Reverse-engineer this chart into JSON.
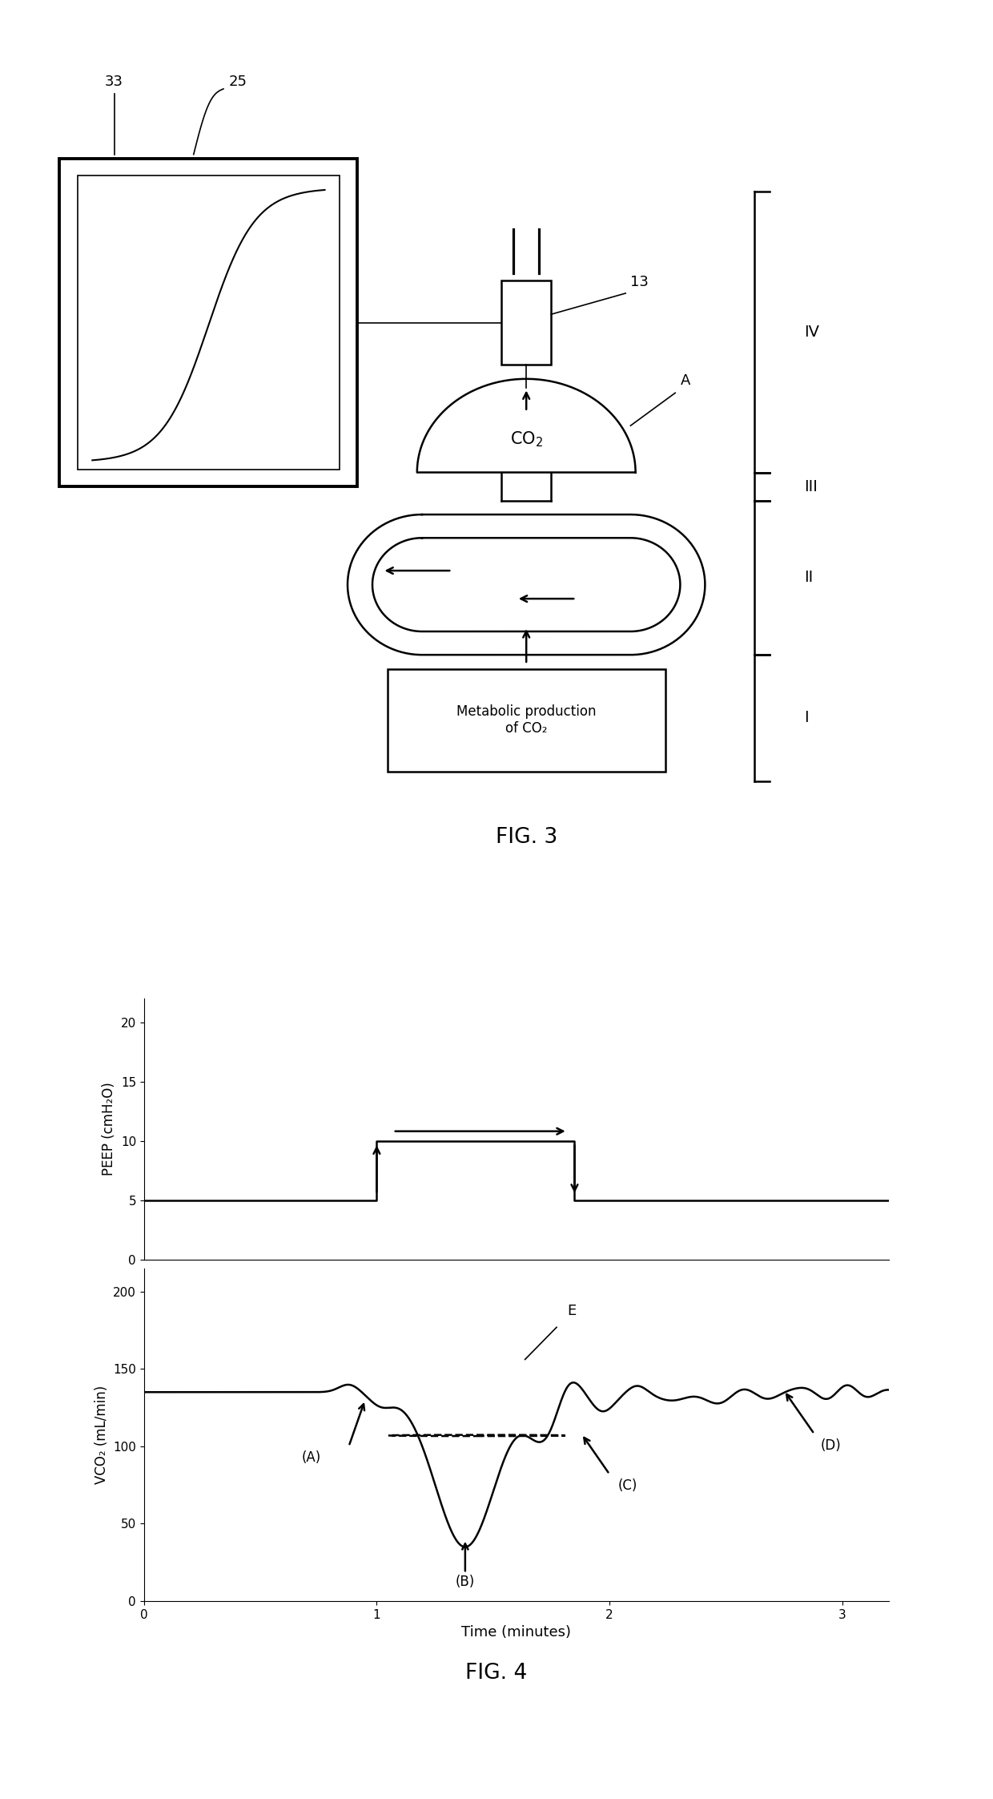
{
  "bg_color": "#ffffff",
  "fig3_title": "FIG. 3",
  "fig4_title": "FIG. 4",
  "label_33": "33",
  "label_25": "25",
  "label_13": "13",
  "label_A": "A",
  "label_IV": "IV",
  "label_III": "III",
  "label_II": "II",
  "label_I": "I",
  "label_metabolic": "Metabolic production\nof CO₂",
  "label_CO2": "CO₂",
  "peep_ylabel": "PEEP (cmH₂O)",
  "peep_yticks": [
    0,
    5,
    10,
    15,
    20
  ],
  "peep_ylim": [
    0,
    22
  ],
  "vco2_ylabel": "VCO₂ (mL/min)",
  "vco2_yticks": [
    0,
    50,
    100,
    150,
    200
  ],
  "vco2_ylim": [
    0,
    215
  ],
  "xlabel": "Time (minutes)",
  "xticks": [
    0,
    1,
    2,
    3
  ],
  "xlim": [
    0,
    3.2
  ],
  "line_color": "#000000",
  "annotation_A": "(A)",
  "annotation_B": "(B)",
  "annotation_C": "(C)",
  "annotation_D": "(D)",
  "annotation_E": "E"
}
